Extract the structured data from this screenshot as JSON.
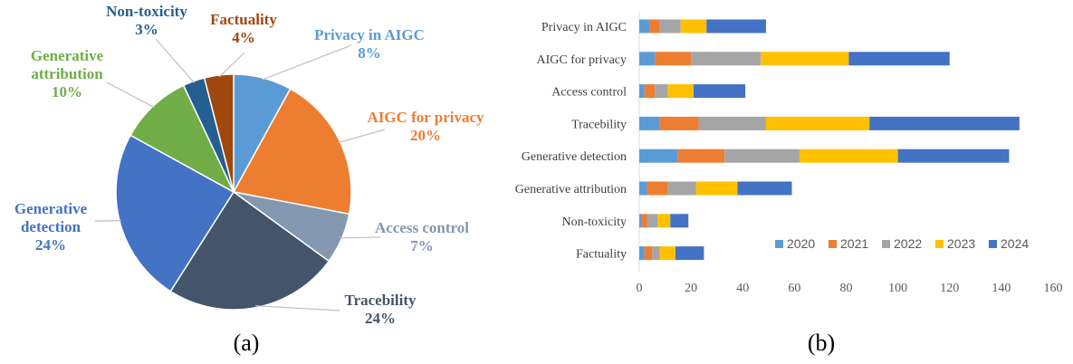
{
  "chart_data": [
    {
      "type": "pie",
      "caption": "(a)",
      "slices": [
        {
          "label": "Privacy in AIGC",
          "value": 8,
          "value_text": "8%",
          "color": "#5B9BD5"
        },
        {
          "label": "AIGC for privacy",
          "value": 20,
          "value_text": "20%",
          "color": "#ED7D31"
        },
        {
          "label": "Access control",
          "value": 7,
          "value_text": "7%",
          "color": "#8497B0"
        },
        {
          "label": "Tracebility",
          "value": 24,
          "value_text": "24%",
          "color": "#44546A"
        },
        {
          "label": "Generative detection",
          "value": 24,
          "value_text": "24%",
          "color": "#4472C4"
        },
        {
          "label": "Generative attribution",
          "value": 10,
          "value_text": "10%",
          "color": "#70AD47"
        },
        {
          "label": "Non-toxicity",
          "value": 3,
          "value_text": "3%",
          "color": "#255E91"
        },
        {
          "label": "Factuality",
          "value": 4,
          "value_text": "4%",
          "color": "#9E480E"
        }
      ]
    },
    {
      "type": "bar",
      "orientation": "horizontal",
      "stacked": true,
      "caption": "(b)",
      "categories": [
        "Privacy in AIGC",
        "AIGC for privacy",
        "Access control",
        "Tracebility",
        "Generative detection",
        "Generative attribution",
        "Non-toxicity",
        "Factuality"
      ],
      "series": [
        {
          "name": "2020",
          "color": "#5B9BD5",
          "values": [
            4,
            6,
            2,
            8,
            15,
            3,
            1,
            2
          ]
        },
        {
          "name": "2021",
          "color": "#ED7D31",
          "values": [
            4,
            14,
            4,
            15,
            18,
            8,
            2,
            3
          ]
        },
        {
          "name": "2022",
          "color": "#A5A5A5",
          "values": [
            8,
            27,
            5,
            26,
            29,
            11,
            4,
            3
          ]
        },
        {
          "name": "2023",
          "color": "#FFC000",
          "values": [
            10,
            34,
            10,
            40,
            38,
            16,
            5,
            6
          ]
        },
        {
          "name": "2024",
          "color": "#4472C4",
          "values": [
            23,
            39,
            20,
            58,
            43,
            21,
            7,
            11
          ]
        }
      ],
      "xlim": [
        0,
        160
      ],
      "xticks": [
        "0",
        "20",
        "40",
        "60",
        "80",
        "100",
        "120",
        "140",
        "160"
      ],
      "legend_position": "bottom-right inside"
    }
  ]
}
